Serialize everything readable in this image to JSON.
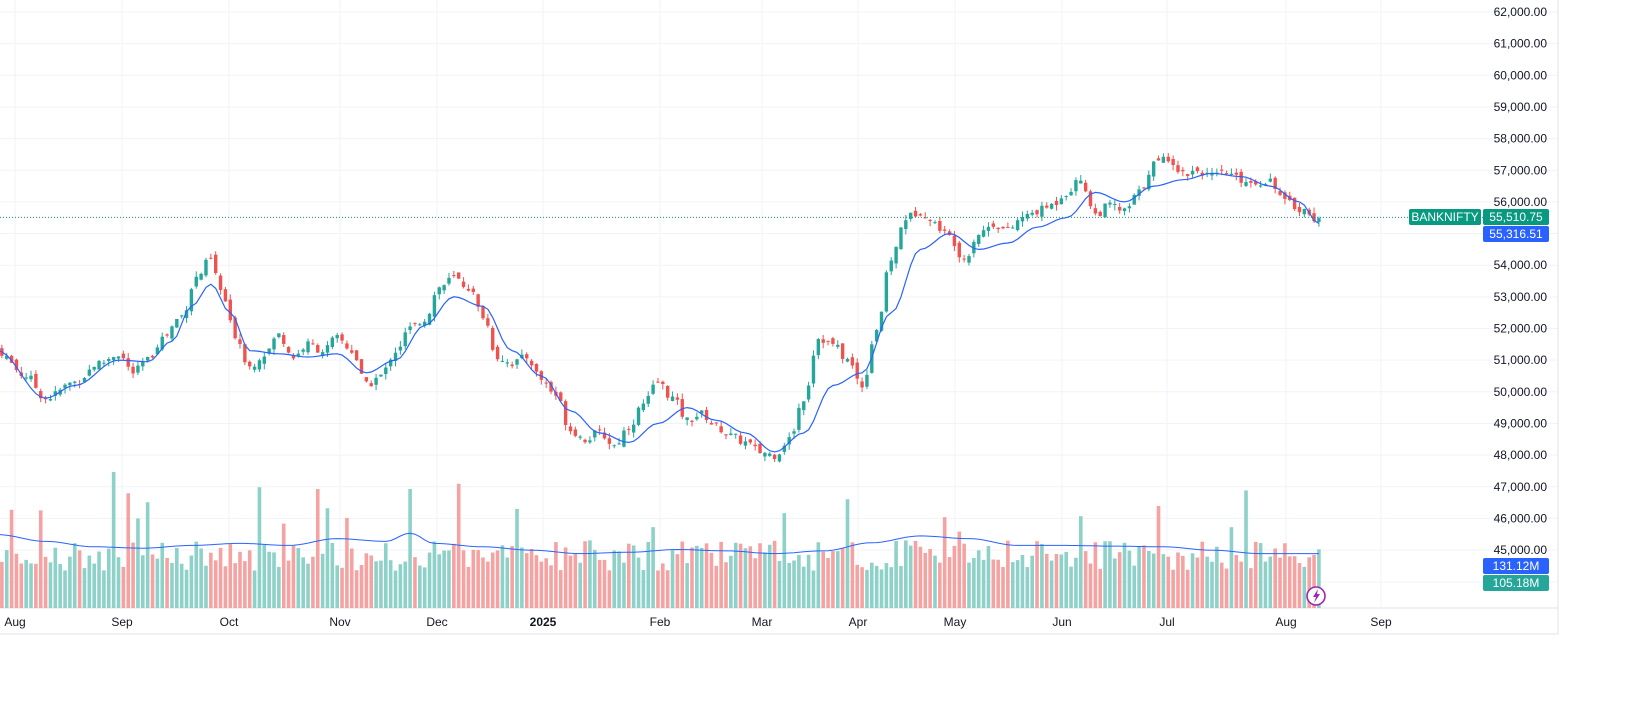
{
  "chart_data": {
    "type": "candlestick",
    "symbol": "BANKNIFTY",
    "last_price": "55,510.75",
    "ma_value": "55,316.51",
    "volume_label": "131.12M",
    "volume_ma_label": "105.18M",
    "price_range": [
      47000,
      62000
    ],
    "y_ticks": [
      "62,000.00",
      "61,000.00",
      "60,000.00",
      "59,000.00",
      "58,000.00",
      "57,000.00",
      "56,000.00",
      "55,000.00",
      "54,000.00",
      "53,000.00",
      "52,000.00",
      "51,000.00",
      "50,000.00",
      "49,000.00",
      "48,000.00",
      "47,000.00",
      "46,000.00",
      "45,000.00"
    ],
    "y_tick_values": [
      62000,
      61000,
      60000,
      59000,
      58000,
      57000,
      56000,
      55000,
      54000,
      53000,
      52000,
      51000,
      50000,
      49000,
      48000,
      47000,
      46000,
      45000
    ],
    "x_ticks": [
      {
        "label": "Aug",
        "bold": false
      },
      {
        "label": "Sep",
        "bold": false
      },
      {
        "label": "Oct",
        "bold": false
      },
      {
        "label": "Nov",
        "bold": false
      },
      {
        "label": "Dec",
        "bold": false
      },
      {
        "label": "2025",
        "bold": true
      },
      {
        "label": "Feb",
        "bold": false
      },
      {
        "label": "Mar",
        "bold": false
      },
      {
        "label": "Apr",
        "bold": false
      },
      {
        "label": "May",
        "bold": false
      },
      {
        "label": "Jun",
        "bold": false
      },
      {
        "label": "Jul",
        "bold": false
      },
      {
        "label": "Aug",
        "bold": false
      },
      {
        "label": "Sep",
        "bold": false
      }
    ],
    "close_anchors": [
      [
        0,
        51300
      ],
      [
        6,
        50500
      ],
      [
        10,
        49800
      ],
      [
        16,
        50300
      ],
      [
        21,
        50900
      ],
      [
        25,
        51200
      ],
      [
        28,
        50600
      ],
      [
        31,
        51000
      ],
      [
        34,
        51700
      ],
      [
        38,
        52400
      ],
      [
        41,
        53600
      ],
      [
        44,
        54200
      ],
      [
        46,
        53200
      ],
      [
        49,
        51800
      ],
      [
        52,
        50800
      ],
      [
        55,
        51200
      ],
      [
        58,
        51800
      ],
      [
        61,
        51100
      ],
      [
        64,
        51500
      ],
      [
        67,
        51300
      ],
      [
        70,
        51700
      ],
      [
        73,
        51300
      ],
      [
        76,
        50200
      ],
      [
        79,
        50500
      ],
      [
        82,
        51300
      ],
      [
        85,
        52000
      ],
      [
        88,
        52300
      ],
      [
        91,
        53300
      ],
      [
        94,
        53600
      ],
      [
        97,
        53300
      ],
      [
        100,
        52400
      ],
      [
        103,
        51100
      ],
      [
        106,
        50900
      ],
      [
        109,
        51100
      ],
      [
        112,
        50400
      ],
      [
        115,
        49900
      ],
      [
        118,
        48800
      ],
      [
        121,
        48500
      ],
      [
        124,
        48700
      ],
      [
        127,
        48300
      ],
      [
        130,
        48900
      ],
      [
        133,
        49600
      ],
      [
        136,
        50300
      ],
      [
        139,
        49800
      ],
      [
        142,
        49100
      ],
      [
        145,
        49300
      ],
      [
        148,
        48900
      ],
      [
        151,
        48600
      ],
      [
        154,
        48400
      ],
      [
        157,
        48100
      ],
      [
        160,
        48000
      ],
      [
        163,
        48500
      ],
      [
        166,
        49800
      ],
      [
        169,
        51700
      ],
      [
        172,
        51500
      ],
      [
        175,
        51000
      ],
      [
        178,
        50200
      ],
      [
        181,
        52000
      ],
      [
        184,
        54200
      ],
      [
        187,
        55500
      ],
      [
        190,
        55700
      ],
      [
        193,
        55300
      ],
      [
        196,
        54900
      ],
      [
        199,
        54200
      ],
      [
        202,
        55000
      ],
      [
        205,
        55300
      ],
      [
        208,
        55100
      ],
      [
        211,
        55500
      ],
      [
        214,
        55700
      ],
      [
        217,
        55900
      ],
      [
        220,
        56300
      ],
      [
        223,
        56700
      ],
      [
        226,
        55600
      ],
      [
        229,
        55900
      ],
      [
        232,
        55700
      ],
      [
        235,
        56300
      ],
      [
        238,
        57200
      ],
      [
        241,
        57400
      ],
      [
        244,
        56900
      ],
      [
        247,
        57000
      ],
      [
        250,
        56800
      ],
      [
        253,
        56900
      ],
      [
        256,
        56700
      ],
      [
        259,
        56600
      ],
      [
        262,
        56700
      ],
      [
        265,
        56000
      ],
      [
        268,
        55800
      ],
      [
        271,
        55500
      ],
      [
        272,
        55510
      ]
    ],
    "ma_curve": [
      [
        0,
        51300
      ],
      [
        10,
        49800
      ],
      [
        16,
        50200
      ],
      [
        25,
        51000
      ],
      [
        31,
        50950
      ],
      [
        36,
        51600
      ],
      [
        40,
        52700
      ],
      [
        44,
        53400
      ],
      [
        48,
        52500
      ],
      [
        52,
        51300
      ],
      [
        58,
        51200
      ],
      [
        64,
        51100
      ],
      [
        70,
        51200
      ],
      [
        76,
        50600
      ],
      [
        82,
        51000
      ],
      [
        88,
        52100
      ],
      [
        94,
        53000
      ],
      [
        100,
        52700
      ],
      [
        106,
        51300
      ],
      [
        112,
        50500
      ],
      [
        118,
        49400
      ],
      [
        124,
        48700
      ],
      [
        130,
        48400
      ],
      [
        136,
        49000
      ],
      [
        142,
        49500
      ],
      [
        148,
        49100
      ],
      [
        154,
        48700
      ],
      [
        160,
        48100
      ],
      [
        166,
        48700
      ],
      [
        172,
        50200
      ],
      [
        178,
        50600
      ],
      [
        184,
        52500
      ],
      [
        190,
        54500
      ],
      [
        196,
        55000
      ],
      [
        202,
        54500
      ],
      [
        208,
        54700
      ],
      [
        214,
        55200
      ],
      [
        220,
        55500
      ],
      [
        226,
        56300
      ],
      [
        232,
        56000
      ],
      [
        238,
        56500
      ],
      [
        244,
        56700
      ],
      [
        250,
        56900
      ],
      [
        256,
        56800
      ],
      [
        262,
        56500
      ],
      [
        268,
        56000
      ],
      [
        272,
        55316
      ]
    ],
    "volume_ma": [
      [
        0,
        1.08
      ],
      [
        10,
        0.98
      ],
      [
        20,
        0.9
      ],
      [
        30,
        0.88
      ],
      [
        40,
        0.92
      ],
      [
        50,
        0.95
      ],
      [
        60,
        0.92
      ],
      [
        70,
        1.02
      ],
      [
        80,
        0.98
      ],
      [
        85,
        1.1
      ],
      [
        90,
        0.95
      ],
      [
        100,
        0.9
      ],
      [
        110,
        0.85
      ],
      [
        120,
        0.8
      ],
      [
        130,
        0.82
      ],
      [
        140,
        0.86
      ],
      [
        150,
        0.84
      ],
      [
        160,
        0.8
      ],
      [
        170,
        0.84
      ],
      [
        180,
        0.96
      ],
      [
        190,
        1.06
      ],
      [
        200,
        1.02
      ],
      [
        210,
        0.92
      ],
      [
        220,
        0.92
      ],
      [
        230,
        0.91
      ],
      [
        240,
        0.9
      ],
      [
        250,
        0.85
      ],
      [
        260,
        0.8
      ],
      [
        272,
        0.8
      ]
    ]
  },
  "icons": {
    "bolt": "lightning-bolt-icon"
  },
  "colors": {
    "up": "#26a69a",
    "down": "#ef5350",
    "ma": "#2962ff",
    "price_line": "#089981",
    "volume_up": "#8ed1c9",
    "volume_down": "#f5a3a2"
  }
}
